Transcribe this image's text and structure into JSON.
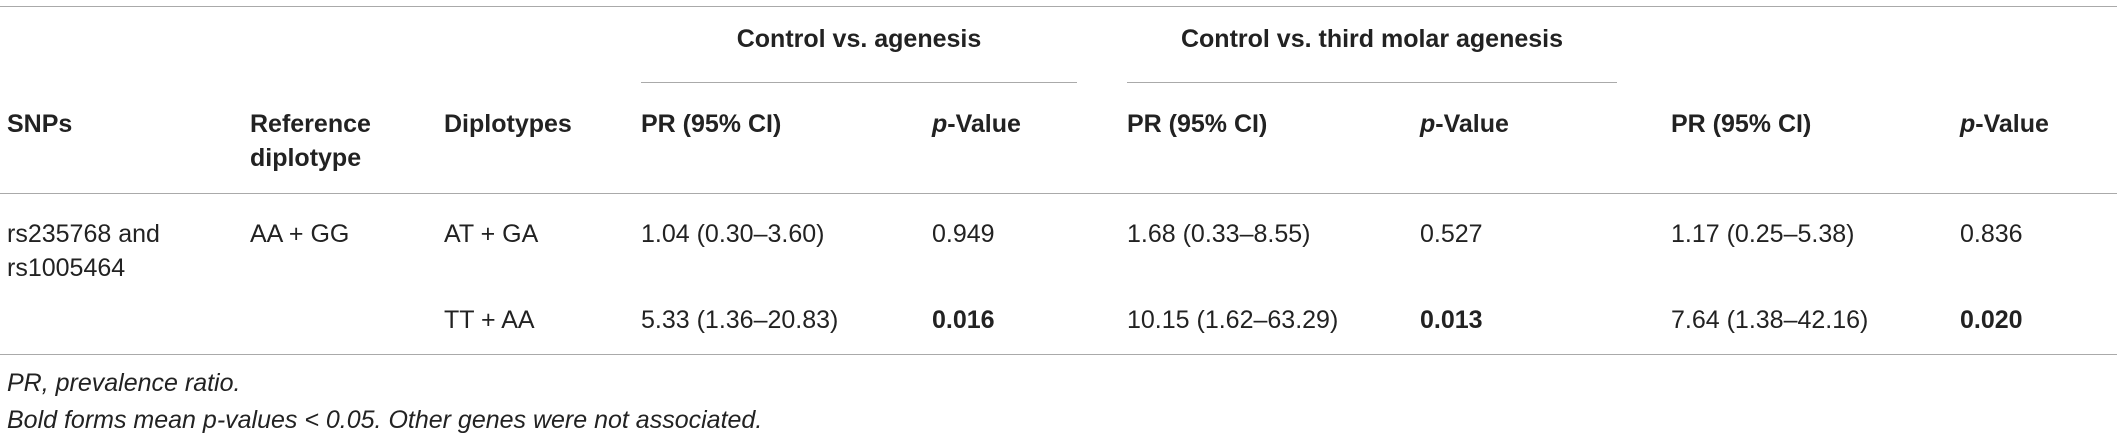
{
  "table": {
    "groups": [
      "Control vs. agenesis",
      "Control vs. third molar agenesis"
    ],
    "header": [
      "SNPs",
      "Reference diplotype",
      "Diplotypes",
      "PR (95% CI)",
      "p-Value",
      "PR (95% CI)",
      "p-Value",
      "PR (95% CI)",
      "p-Value"
    ],
    "rows": [
      [
        {
          "text": "rs235768 and rs1005464"
        },
        {
          "text": "AA + GG"
        },
        {
          "text": "AT + GA"
        },
        {
          "text": "1.04 (0.30–3.60)"
        },
        {
          "text": "0.949"
        },
        {
          "text": "1.68 (0.33–8.55)"
        },
        {
          "text": "0.527"
        },
        {
          "text": "1.17 (0.25–5.38)"
        },
        {
          "text": "0.836"
        }
      ],
      [
        null,
        null,
        {
          "text": "TT + AA"
        },
        {
          "text": "5.33 (1.36–20.83)"
        },
        {
          "text": "0.016",
          "bold": true
        },
        {
          "text": "10.15 (1.62–63.29)"
        },
        {
          "text": "0.013",
          "bold": true
        },
        {
          "text": "7.64 (1.38–42.16)"
        },
        {
          "text": "0.020",
          "bold": true
        }
      ]
    ],
    "footnotes": [
      "PR, prevalence ratio.",
      "Bold forms mean p-values < 0.05. Other genes were not associated."
    ]
  }
}
